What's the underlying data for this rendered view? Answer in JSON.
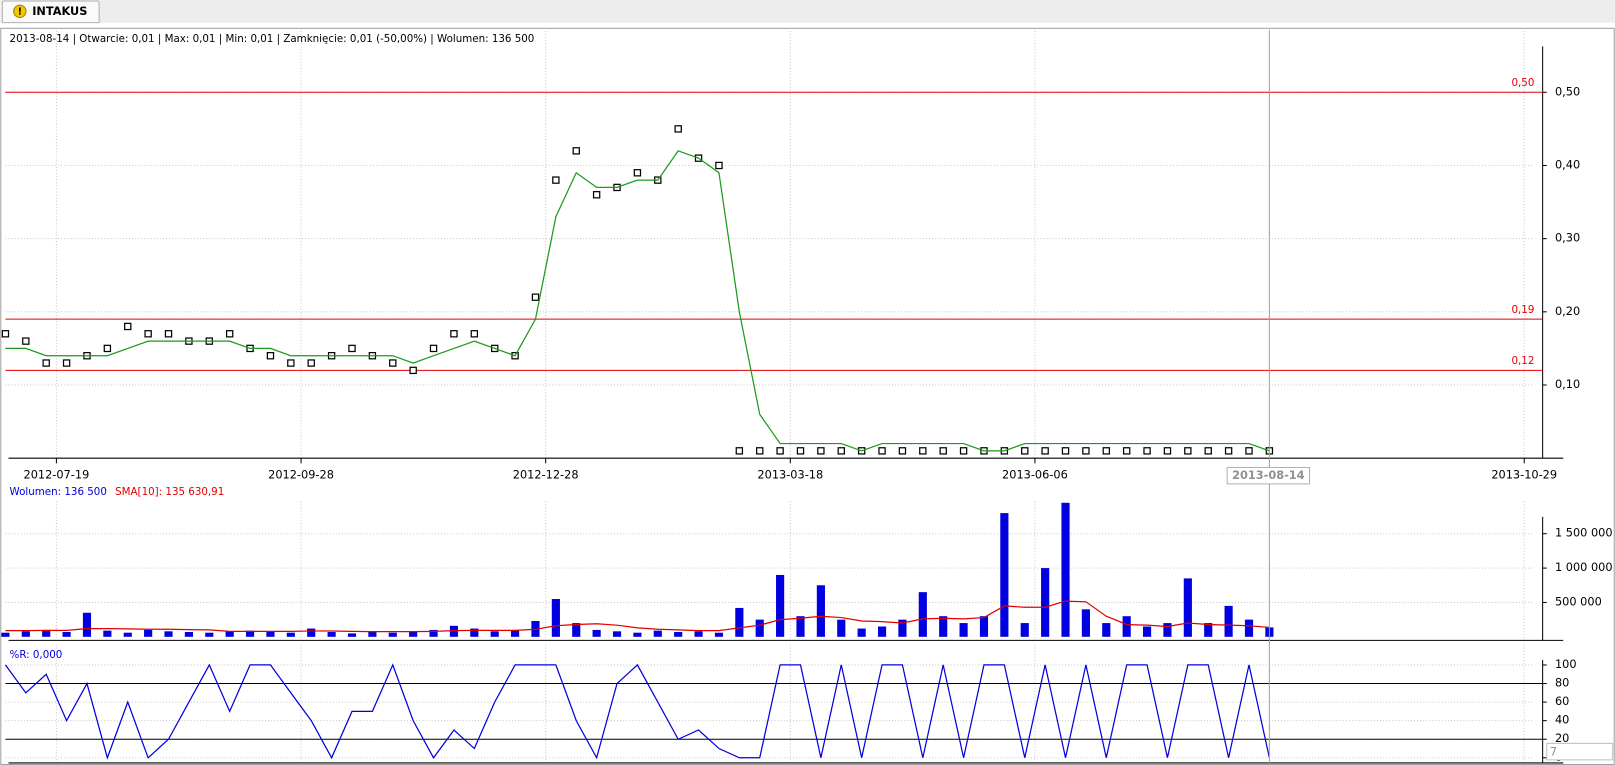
{
  "tab": "INTAKUS",
  "cursor_label": "2013-08-14",
  "corner_label": "7",
  "chart_data": [
    {
      "type": "price",
      "title": "2013-08-14 | Otwarcie: 0,01 | Max: 0,01 | Min: 0,01 | Zamknięcie: 0,01 (-50,00%)  | Wolumen: 136 500",
      "xlim": [
        0,
        75
      ],
      "xticks": [
        {
          "value": 2.5,
          "label": "2012-07-19"
        },
        {
          "value": 14.5,
          "label": "2012-09-28"
        },
        {
          "value": 26.5,
          "label": "2012-12-28"
        },
        {
          "value": 38.5,
          "label": "2013-03-18"
        },
        {
          "value": 50.5,
          "label": "2013-06-06"
        },
        {
          "value": 74.5,
          "label": "2013-10-29"
        }
      ],
      "ylim": [
        0,
        0.56
      ],
      "yticks": [
        {
          "value": 0.1,
          "label": "0,10"
        },
        {
          "value": 0.2,
          "label": "0,20"
        },
        {
          "value": 0.3,
          "label": "0,30"
        },
        {
          "value": 0.4,
          "label": "0,40"
        },
        {
          "value": 0.5,
          "label": "0,50"
        }
      ],
      "grid": true,
      "levels": [
        {
          "value": 0.5,
          "label": "0,50"
        },
        {
          "value": 0.19,
          "label": "0,19"
        },
        {
          "value": 0.12,
          "label": "0,12"
        }
      ],
      "level_color": "#e00000",
      "series": [
        {
          "style": "ticks",
          "color": "#000000",
          "values": [
            0.17,
            0.16,
            0.13,
            0.13,
            0.14,
            0.15,
            0.18,
            0.17,
            0.17,
            0.16,
            0.16,
            0.17,
            0.15,
            0.14,
            0.13,
            0.13,
            0.14,
            0.15,
            0.14,
            0.13,
            0.12,
            0.15,
            0.17,
            0.17,
            0.15,
            0.14,
            0.22,
            0.38,
            0.42,
            0.36,
            0.37,
            0.39,
            0.38,
            0.45,
            0.41,
            0.4,
            0.01,
            0.01,
            0.01,
            0.01,
            0.01,
            0.01,
            0.01,
            0.01,
            0.01,
            0.01,
            0.01,
            0.01,
            0.01,
            0.01,
            0.01,
            0.01,
            0.01,
            0.01,
            0.01,
            0.01,
            0.01,
            0.01,
            0.01,
            0.01,
            0.01,
            0.01,
            0.01
          ]
        },
        {
          "style": "line",
          "color": "#1a9a1a",
          "values": [
            0.15,
            0.15,
            0.14,
            0.14,
            0.14,
            0.14,
            0.15,
            0.16,
            0.16,
            0.16,
            0.16,
            0.16,
            0.15,
            0.15,
            0.14,
            0.14,
            0.14,
            0.14,
            0.14,
            0.14,
            0.13,
            0.14,
            0.15,
            0.16,
            0.15,
            0.14,
            0.19,
            0.33,
            0.39,
            0.37,
            0.37,
            0.38,
            0.38,
            0.42,
            0.41,
            0.39,
            0.2,
            0.06,
            0.02,
            0.02,
            0.02,
            0.02,
            0.01,
            0.02,
            0.02,
            0.02,
            0.02,
            0.02,
            0.01,
            0.01,
            0.02,
            0.02,
            0.02,
            0.02,
            0.02,
            0.02,
            0.02,
            0.02,
            0.02,
            0.02,
            0.02,
            0.02,
            0.01
          ]
        }
      ]
    },
    {
      "type": "volume",
      "xlim": [
        0,
        75
      ],
      "ylim": [
        0,
        2000000
      ],
      "yticks": [
        {
          "value": 500000,
          "label": "500 000"
        },
        {
          "value": 1000000,
          "label": "1 000 000"
        },
        {
          "value": 1500000,
          "label": "1 500 000"
        }
      ],
      "grid": true,
      "series": [
        {
          "name": "Wolumen: 136 500",
          "style": "bars",
          "color": "#0000e0",
          "values": [
            60000,
            80000,
            100000,
            70000,
            350000,
            90000,
            60000,
            100000,
            80000,
            70000,
            60000,
            80000,
            90000,
            70000,
            60000,
            120000,
            70000,
            50000,
            80000,
            60000,
            70000,
            100000,
            160000,
            120000,
            80000,
            90000,
            230000,
            550000,
            200000,
            100000,
            80000,
            60000,
            90000,
            70000,
            80000,
            60000,
            420000,
            250000,
            900000,
            300000,
            750000,
            250000,
            120000,
            150000,
            250000,
            650000,
            300000,
            200000,
            300000,
            1800000,
            200000,
            1000000,
            1950000,
            400000,
            200000,
            300000,
            150000,
            200000,
            850000,
            200000,
            450000,
            250000,
            136500
          ]
        },
        {
          "name": "SMA[10]: 135 630,91",
          "style": "line",
          "color": "#e00000",
          "values": [
            90000,
            90000,
            95000,
            95000,
            120000,
            120000,
            115000,
            110000,
            110000,
            105000,
            100000,
            80000,
            80000,
            80000,
            80000,
            85000,
            85000,
            80000,
            75000,
            75000,
            75000,
            80000,
            90000,
            95000,
            95000,
            95000,
            110000,
            160000,
            180000,
            190000,
            170000,
            130000,
            110000,
            100000,
            90000,
            90000,
            130000,
            170000,
            250000,
            270000,
            300000,
            280000,
            230000,
            220000,
            200000,
            260000,
            270000,
            260000,
            280000,
            450000,
            430000,
            430000,
            520000,
            510000,
            300000,
            180000,
            170000,
            150000,
            200000,
            180000,
            170000,
            160000,
            135630.91
          ]
        }
      ]
    },
    {
      "type": "oscillator",
      "xlim": [
        0,
        75
      ],
      "ylim": [
        0,
        122
      ],
      "yticks": [
        0,
        20,
        40,
        60,
        80,
        100
      ],
      "grid": true,
      "levels": [
        80,
        20
      ],
      "level_color": "#000000",
      "series": [
        {
          "name": "%R: 0,000",
          "style": "line",
          "color": "#0000e0",
          "values": [
            100,
            70,
            90,
            40,
            80,
            0,
            60,
            0,
            20,
            60,
            100,
            50,
            100,
            100,
            70,
            40,
            0,
            50,
            50,
            100,
            40,
            0,
            30,
            10,
            60,
            100,
            100,
            100,
            40,
            0,
            80,
            100,
            60,
            20,
            30,
            10,
            0,
            0,
            100,
            100,
            0,
            100,
            0,
            100,
            100,
            0,
            100,
            0,
            100,
            100,
            0,
            100,
            0,
            100,
            0,
            100,
            100,
            0,
            100,
            100,
            0,
            100,
            0
          ]
        }
      ]
    }
  ]
}
